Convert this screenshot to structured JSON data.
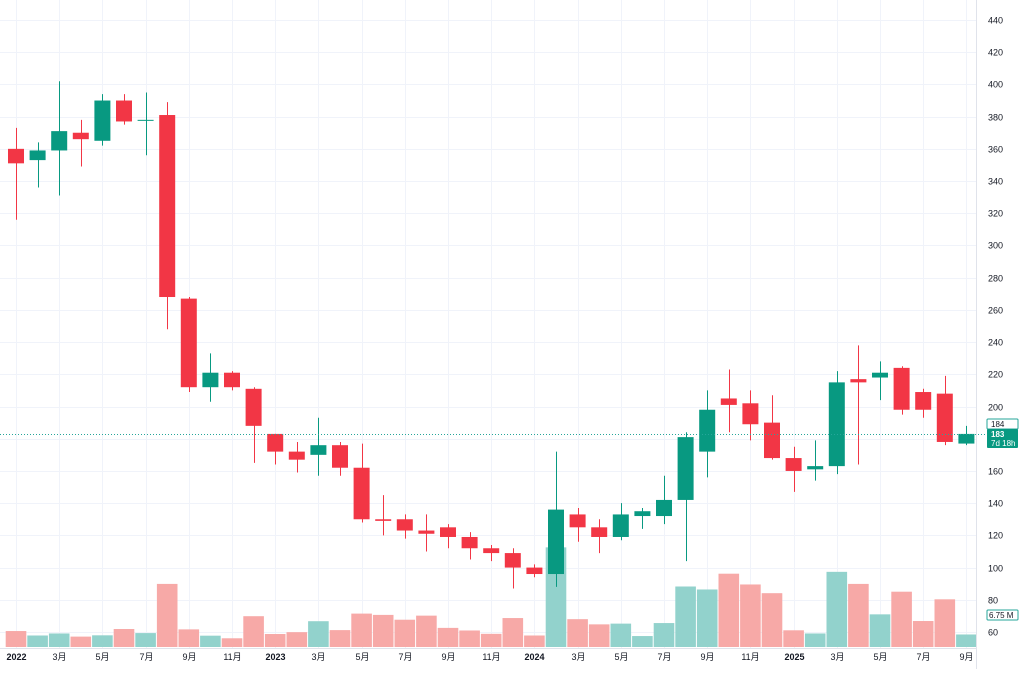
{
  "chart_data": {
    "type": "candlestick",
    "interval": "monthly",
    "ylim": [
      50,
      450
    ],
    "y_ticks": [
      60,
      80,
      100,
      120,
      140,
      160,
      180,
      200,
      220,
      240,
      260,
      280,
      300,
      320,
      340,
      360,
      380,
      400,
      420,
      440
    ],
    "x_tick_labels": [
      "2022",
      "3月",
      "5月",
      "7月",
      "9月",
      "11月",
      "2023",
      "3月",
      "5月",
      "7月",
      "9月",
      "11月",
      "2024",
      "3月",
      "5月",
      "7月",
      "9月",
      "11月",
      "2025",
      "3月",
      "5月",
      "7月",
      "9月"
    ],
    "x_tick_months": [
      0,
      2,
      4,
      6,
      8,
      10,
      12,
      14,
      16,
      18,
      20,
      22,
      24,
      26,
      28,
      30,
      32,
      34,
      36,
      38,
      40,
      42,
      44
    ],
    "months": [
      "2022-01",
      "2022-02",
      "2022-03",
      "2022-04",
      "2022-05",
      "2022-06",
      "2022-07",
      "2022-08",
      "2022-09",
      "2022-10",
      "2022-11",
      "2022-12",
      "2023-01",
      "2023-02",
      "2023-03",
      "2023-04",
      "2023-05",
      "2023-06",
      "2023-07",
      "2023-08",
      "2023-09",
      "2023-10",
      "2023-11",
      "2023-12",
      "2024-01",
      "2024-02",
      "2024-03",
      "2024-04",
      "2024-05",
      "2024-06",
      "2024-07",
      "2024-08",
      "2024-09",
      "2024-10",
      "2024-11",
      "2024-12",
      "2025-01",
      "2025-02",
      "2025-03",
      "2025-04",
      "2025-05",
      "2025-06",
      "2025-07",
      "2025-08",
      "2025-09"
    ],
    "open": [
      360,
      353,
      359,
      370,
      365,
      390,
      378,
      381,
      267,
      212,
      221,
      211,
      183,
      172,
      170,
      176,
      162,
      130,
      130,
      123,
      125,
      119,
      112,
      109,
      100,
      96,
      133,
      125,
      119,
      132,
      132,
      142,
      172,
      205,
      202,
      190,
      168,
      161,
      163,
      217,
      218,
      224,
      209,
      208,
      177
    ],
    "high": [
      373,
      364,
      402,
      378,
      394,
      394,
      395,
      389,
      268,
      233,
      222,
      212,
      183,
      178,
      193,
      178,
      177,
      145,
      133,
      133,
      127,
      122,
      114,
      112,
      102,
      172,
      137,
      130,
      140,
      137,
      157,
      184,
      210,
      223,
      210,
      207,
      175,
      179,
      222,
      238,
      228,
      225,
      211,
      219,
      188
    ],
    "low": [
      316,
      336,
      331,
      349,
      362,
      375,
      356,
      248,
      209,
      203,
      210,
      165,
      164,
      159,
      157,
      157,
      128,
      120,
      118,
      110,
      112,
      105,
      104,
      87,
      94,
      88,
      116,
      109,
      117,
      124,
      127,
      104,
      156,
      184,
      179,
      167,
      147,
      154,
      158,
      164,
      204,
      195,
      193,
      176,
      176
    ],
    "close": [
      351,
      359,
      371,
      366,
      390,
      377,
      378,
      268,
      212,
      221,
      212,
      188,
      172,
      167,
      176,
      162,
      130,
      129,
      123,
      121,
      119,
      112,
      109,
      100,
      96,
      136,
      125,
      119,
      133,
      135,
      142,
      181,
      198,
      201,
      189,
      168,
      160,
      163,
      215,
      215,
      221,
      198,
      198,
      178,
      183
    ],
    "volume_unit": "M",
    "volume": [
      8.6,
      6.2,
      7.3,
      5.6,
      6.3,
      9.7,
      7.5,
      34.0,
      9.5,
      6.1,
      4.7,
      16.6,
      7.0,
      8.0,
      13.9,
      9.1,
      18.0,
      17.3,
      14.7,
      16.9,
      10.3,
      8.9,
      7.1,
      15.6,
      6.2,
      53.7,
      15.0,
      12.2,
      12.6,
      5.9,
      12.9,
      32.6,
      31.0,
      39.5,
      33.7,
      29.0,
      9.0,
      7.3,
      40.5,
      34.0,
      17.6,
      29.8,
      14.0,
      25.7,
      6.75
    ],
    "volume_max_scale": 97,
    "last_price_label": "183",
    "prev_level_label": "184",
    "countdown_label": "7d 18h",
    "volume_label": "6.75 M",
    "colors": {
      "up": "#089981",
      "down": "#f23645",
      "volume_up": "#92d2cc",
      "volume_down": "#f7a9a7",
      "grid": "#f0f3fa",
      "text": "#131722",
      "price_line": "#26a69a"
    }
  }
}
